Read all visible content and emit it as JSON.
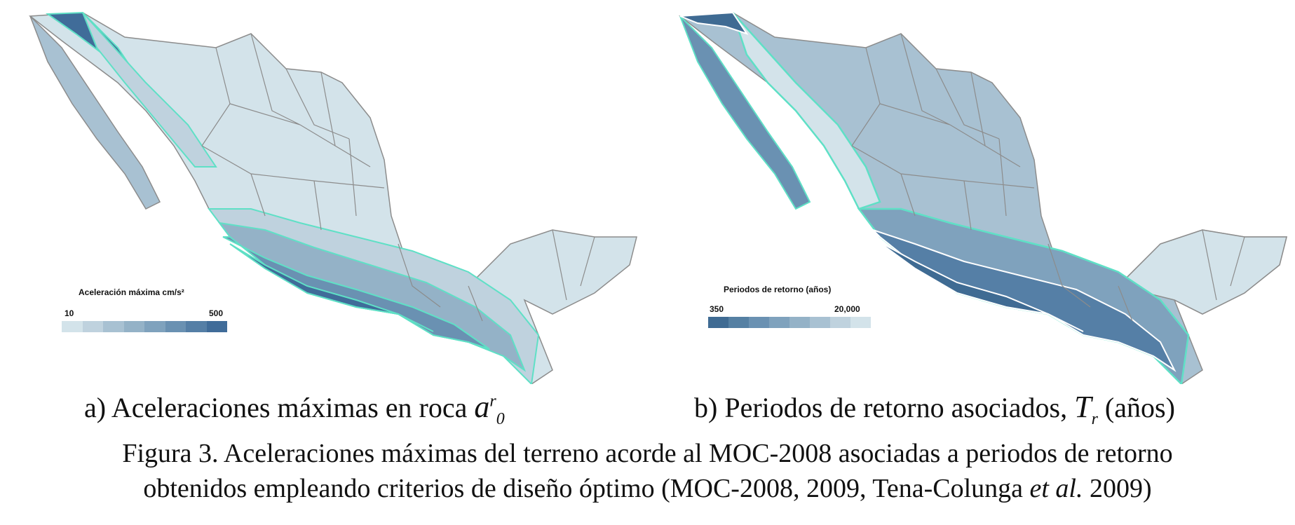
{
  "map_a": {
    "legend": {
      "title": "Aceleración máxima cm/s²",
      "min_label": "10",
      "max_label": "500",
      "colors": [
        "#d3e3ea",
        "#bfd2de",
        "#a8c1d2",
        "#94b2c7",
        "#7fa2bd",
        "#6a91b2",
        "#557fa6",
        "#406c99"
      ]
    },
    "caption_prefix": "a) Aceleraciones máximas en roca",
    "caption_symbol": "a",
    "caption_sup": "r",
    "caption_sub": "0"
  },
  "map_b": {
    "legend": {
      "title": "Periodos de retorno (años)",
      "min_label": "350",
      "max_label": "20,000",
      "colors": [
        "#3f6b93",
        "#5580a3",
        "#6a91b2",
        "#7fa2bd",
        "#94b2c7",
        "#a8c1d2",
        "#bfd2de",
        "#d3e3ea"
      ]
    },
    "caption_prefix": "b) Periodos de retorno asociados,",
    "caption_symbol": "T",
    "caption_sub": "r",
    "caption_suffix": "(años)"
  },
  "figure_caption": {
    "line1": "Figura 3. Aceleraciones máximas del terreno acorde al MOC-2008 asociadas a periodos de retorno",
    "line2_prefix": "obtenidos empleando criterios de diseño óptimo (MOC-2008, 2009, Tena-Colunga ",
    "line2_italic": "et al.",
    "line2_suffix": " 2009)"
  }
}
